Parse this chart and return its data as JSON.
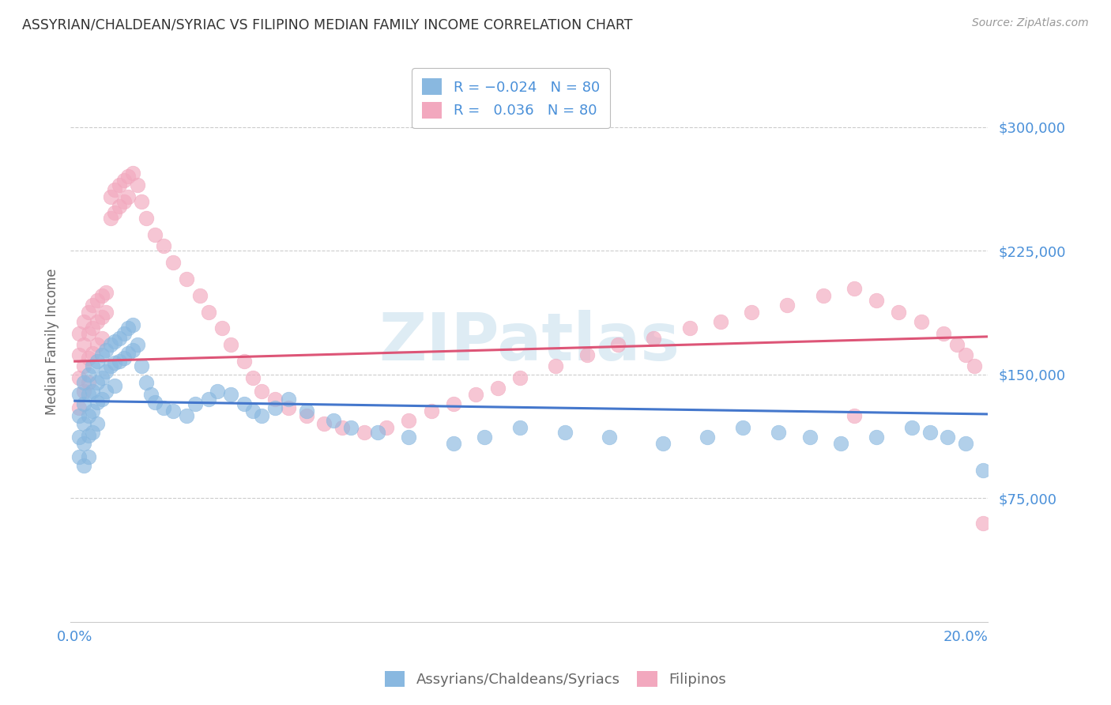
{
  "title": "ASSYRIAN/CHALDEAN/SYRIAC VS FILIPINO MEDIAN FAMILY INCOME CORRELATION CHART",
  "source": "Source: ZipAtlas.com",
  "ylabel": "Median Family Income",
  "ytick_labels": [
    "$75,000",
    "$150,000",
    "$225,000",
    "$300,000"
  ],
  "ytick_values": [
    75000,
    150000,
    225000,
    300000
  ],
  "ylim": [
    0,
    340000
  ],
  "xlim": [
    -0.001,
    0.205
  ],
  "blue_color": "#89b8e0",
  "pink_color": "#f2a8be",
  "blue_line_color": "#4477cc",
  "pink_line_color": "#dd5577",
  "watermark_color": "#d0e4f0",
  "blue_scatter_x": [
    0.001,
    0.001,
    0.001,
    0.001,
    0.002,
    0.002,
    0.002,
    0.002,
    0.002,
    0.003,
    0.003,
    0.003,
    0.003,
    0.003,
    0.004,
    0.004,
    0.004,
    0.004,
    0.005,
    0.005,
    0.005,
    0.005,
    0.006,
    0.006,
    0.006,
    0.007,
    0.007,
    0.007,
    0.008,
    0.008,
    0.009,
    0.009,
    0.009,
    0.01,
    0.01,
    0.011,
    0.011,
    0.012,
    0.012,
    0.013,
    0.013,
    0.014,
    0.015,
    0.016,
    0.017,
    0.018,
    0.02,
    0.022,
    0.025,
    0.027,
    0.03,
    0.032,
    0.035,
    0.038,
    0.04,
    0.042,
    0.045,
    0.048,
    0.052,
    0.058,
    0.062,
    0.068,
    0.075,
    0.085,
    0.092,
    0.1,
    0.11,
    0.12,
    0.132,
    0.142,
    0.15,
    0.158,
    0.165,
    0.172,
    0.18,
    0.188,
    0.192,
    0.196,
    0.2,
    0.204
  ],
  "blue_scatter_y": [
    138000,
    125000,
    112000,
    100000,
    145000,
    132000,
    120000,
    108000,
    95000,
    150000,
    138000,
    125000,
    113000,
    100000,
    155000,
    140000,
    128000,
    115000,
    158000,
    145000,
    133000,
    120000,
    162000,
    148000,
    135000,
    165000,
    152000,
    140000,
    168000,
    155000,
    170000,
    157000,
    143000,
    172000,
    158000,
    175000,
    160000,
    178000,
    163000,
    180000,
    165000,
    168000,
    155000,
    145000,
    138000,
    133000,
    130000,
    128000,
    125000,
    132000,
    135000,
    140000,
    138000,
    132000,
    128000,
    125000,
    130000,
    135000,
    128000,
    122000,
    118000,
    115000,
    112000,
    108000,
    112000,
    118000,
    115000,
    112000,
    108000,
    112000,
    118000,
    115000,
    112000,
    108000,
    112000,
    118000,
    115000,
    112000,
    108000,
    92000
  ],
  "pink_scatter_x": [
    0.001,
    0.001,
    0.001,
    0.001,
    0.002,
    0.002,
    0.002,
    0.002,
    0.003,
    0.003,
    0.003,
    0.003,
    0.004,
    0.004,
    0.004,
    0.005,
    0.005,
    0.005,
    0.006,
    0.006,
    0.006,
    0.007,
    0.007,
    0.008,
    0.008,
    0.009,
    0.009,
    0.01,
    0.01,
    0.011,
    0.011,
    0.012,
    0.012,
    0.013,
    0.014,
    0.015,
    0.016,
    0.018,
    0.02,
    0.022,
    0.025,
    0.028,
    0.03,
    0.033,
    0.035,
    0.038,
    0.04,
    0.042,
    0.045,
    0.048,
    0.052,
    0.056,
    0.06,
    0.065,
    0.07,
    0.075,
    0.08,
    0.085,
    0.09,
    0.095,
    0.1,
    0.108,
    0.115,
    0.122,
    0.13,
    0.138,
    0.145,
    0.152,
    0.16,
    0.168,
    0.175,
    0.18,
    0.185,
    0.19,
    0.195,
    0.198,
    0.2,
    0.202,
    0.204,
    0.175
  ],
  "pink_scatter_y": [
    175000,
    162000,
    148000,
    130000,
    182000,
    168000,
    155000,
    140000,
    188000,
    175000,
    160000,
    145000,
    192000,
    178000,
    163000,
    195000,
    182000,
    168000,
    198000,
    185000,
    172000,
    200000,
    188000,
    245000,
    258000,
    262000,
    248000,
    265000,
    252000,
    268000,
    255000,
    270000,
    258000,
    272000,
    265000,
    255000,
    245000,
    235000,
    228000,
    218000,
    208000,
    198000,
    188000,
    178000,
    168000,
    158000,
    148000,
    140000,
    135000,
    130000,
    125000,
    120000,
    118000,
    115000,
    118000,
    122000,
    128000,
    132000,
    138000,
    142000,
    148000,
    155000,
    162000,
    168000,
    172000,
    178000,
    182000,
    188000,
    192000,
    198000,
    202000,
    195000,
    188000,
    182000,
    175000,
    168000,
    162000,
    155000,
    60000,
    125000
  ],
  "blue_trend_x": [
    0.0,
    0.205
  ],
  "blue_trend_y": [
    134000,
    126000
  ],
  "pink_trend_x": [
    0.0,
    0.205
  ],
  "pink_trend_y": [
    158000,
    173000
  ],
  "background_color": "#ffffff",
  "grid_color": "#cccccc",
  "title_color": "#333333",
  "axis_label_color": "#666666",
  "tick_color": "#4a90d9",
  "source_color": "#999999"
}
